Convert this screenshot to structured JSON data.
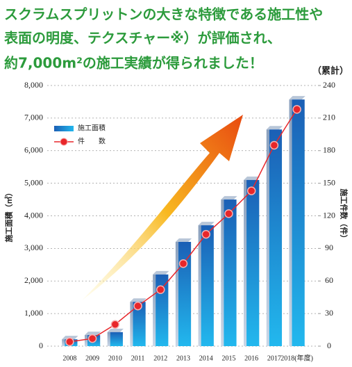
{
  "chart_data": {
    "type": "bar_line",
    "title_lines": [
      "スクラムスプリットンの大きな特徴である施工性や",
      "表面の明度、テクスチャー※）が評価され、",
      "約7,000m²の施工実績が得られました！"
    ],
    "categories": [
      "2008",
      "2009",
      "2010",
      "2011",
      "2012",
      "2013",
      "2014",
      "2015",
      "2016",
      "2017",
      "2018(年度)"
    ],
    "series": [
      {
        "name": "施工面積",
        "color": "#1e6fc0",
        "values": [
          210,
          340,
          430,
          1360,
          2200,
          3200,
          3710,
          4500,
          5100,
          6650,
          7570
        ]
      },
      {
        "name": "件　　数",
        "color": "#e8262a",
        "axis": "y2",
        "values": [
          4,
          7,
          20,
          37,
          52,
          76,
          103,
          122,
          143,
          185,
          218
        ]
      }
    ],
    "y_label": "施工面積（㎡）",
    "y2_label": "施工件数（件）",
    "y2_unit": "（累計）",
    "ylim": [
      0,
      8000
    ],
    "yticks": [
      0,
      {
        "value": 1000,
        "label": "1,000"
      },
      {
        "value": 2000,
        "label": "2,000"
      },
      {
        "value": 3000,
        "label": "3,000"
      },
      {
        "value": 4000,
        "label": "4,000"
      },
      {
        "value": 5000,
        "label": "5,000"
      },
      {
        "value": 6000,
        "label": "6,000"
      },
      {
        "value": 7000,
        "label": "7,000"
      },
      {
        "value": 8000,
        "label": "8,000"
      }
    ],
    "y2lim": [
      0,
      240
    ],
    "y2ticks": [
      0,
      30,
      60,
      90,
      120,
      150,
      180,
      210,
      240
    ],
    "grid": true
  }
}
